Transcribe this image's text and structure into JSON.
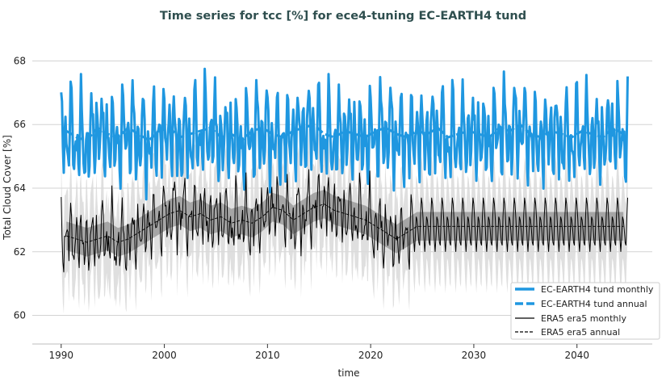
{
  "chart_data": {
    "type": "line",
    "title": "Time series for tcc [%] for ece4-tuning EC-EARTH4 tund",
    "xlabel": "time",
    "ylabel": "Total Cloud Cover [%]",
    "xlim": [
      1987.2,
      2047.3
    ],
    "ylim": [
      59.1,
      68.9
    ],
    "xticks": [
      1990,
      2000,
      2010,
      2020,
      2030,
      2040
    ],
    "yticks": [
      60,
      62,
      64,
      66,
      68
    ],
    "grid": "horizontal",
    "legend_position": "bottom-right",
    "colors": {
      "model": "#1f97e0",
      "era5": "#000000",
      "band_light": "#d9d9d9",
      "band_dark": "#8c8c8c"
    },
    "series": [
      {
        "name": "EC-EARTH4 tund monthly",
        "style": "solid-thick",
        "start_year": 1990,
        "annual_means": [
          65.8,
          65.6,
          65.5,
          65.9,
          65.7,
          65.6,
          65.9,
          65.7,
          65.5,
          65.8,
          65.9,
          65.6,
          65.7,
          65.8,
          65.9,
          65.6,
          65.7,
          65.5,
          65.8,
          65.9,
          65.7,
          65.6,
          65.8,
          65.9,
          66.0,
          65.7,
          65.6,
          65.8,
          65.7,
          65.6,
          65.8,
          65.9,
          65.7,
          65.6,
          65.8,
          65.7,
          65.9,
          65.6,
          65.7,
          65.8,
          65.7,
          65.6,
          65.9,
          65.8,
          66.0,
          65.7,
          65.6,
          65.8,
          65.7,
          65.6,
          65.8,
          65.7,
          65.6,
          65.9,
          65.7
        ],
        "seasonal_cycle": [
          1.0,
          0.4,
          -0.6,
          -1.2,
          -0.4,
          0.3,
          0.1,
          -0.2,
          -0.9,
          -1.1,
          0.2,
          1.3
        ]
      },
      {
        "name": "EC-EARTH4 tund annual",
        "style": "dashed-thick",
        "start_year": 1990,
        "source": "EC-EARTH4 tund monthly"
      },
      {
        "name": "ERA5 era5 monthly",
        "style": "solid-thin",
        "start_year": 1990,
        "annual_means": [
          62.5,
          62.4,
          62.3,
          62.4,
          62.5,
          62.3,
          62.4,
          62.6,
          62.8,
          63.0,
          63.2,
          63.3,
          63.1,
          63.2,
          63.0,
          63.1,
          62.9,
          63.0,
          62.9,
          63.1,
          63.4,
          63.3,
          63.0,
          63.2,
          63.4,
          63.5,
          63.3,
          63.2,
          63.1,
          63.0,
          62.8,
          62.6,
          62.4,
          62.6
        ],
        "seasonal_cycle": [
          0.7,
          0.2,
          -0.4,
          -0.8,
          -0.3,
          0.3,
          0.2,
          -0.1,
          -0.5,
          -0.6,
          0.3,
          0.9
        ],
        "climatology_to": 2045,
        "climatology_mean": 62.8
      },
      {
        "name": "ERA5 era5 annual",
        "style": "dashed-thin",
        "start_year": 1990,
        "source": "ERA5 era5 monthly"
      }
    ]
  }
}
